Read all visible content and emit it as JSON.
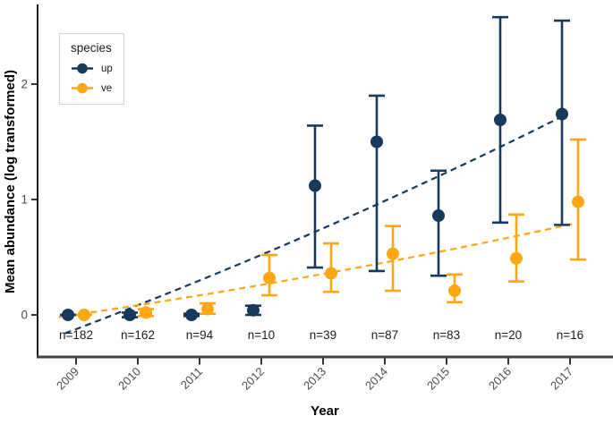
{
  "figure": {
    "xlabel": "Year",
    "ylabel": "Mean abundance (log transformed)"
  },
  "legend": {
    "title": "species"
  },
  "chart_data": {
    "type": "scatter",
    "title": "",
    "xlabel": "Year",
    "ylabel": "Mean abundance (log transformed)",
    "categories": [
      "2009",
      "2010",
      "2011",
      "2012",
      "2013",
      "2014",
      "2015",
      "2016",
      "2017"
    ],
    "n_labels": [
      "n=182",
      "n=162",
      "n=94",
      "n=10",
      "n=39",
      "n=87",
      "n=83",
      "n=20",
      "n=16"
    ],
    "yticks": [
      "0",
      "1",
      "2"
    ],
    "ylim": [
      -0.35,
      2.65
    ],
    "grid": false,
    "legend_position": "top-left",
    "legend_title": "species",
    "colors": {
      "up": "#17395C",
      "ve": "#FFA614",
      "axis": "#333333",
      "tick_text": "#4d4d4d",
      "n_text": "#1a1a1a"
    },
    "series": [
      {
        "name": "up",
        "color": "#17395C",
        "points": [
          {
            "x": "2009",
            "y": 0.0,
            "lo": 0.0,
            "hi": 0.0
          },
          {
            "x": "2010",
            "y": 0.0,
            "lo": -0.02,
            "hi": 0.02
          },
          {
            "x": "2011",
            "y": 0.0,
            "lo": -0.01,
            "hi": 0.01
          },
          {
            "x": "2012",
            "y": 0.04,
            "lo": 0.0,
            "hi": 0.08
          },
          {
            "x": "2013",
            "y": 1.12,
            "lo": 0.41,
            "hi": 1.64
          },
          {
            "x": "2014",
            "y": 1.5,
            "lo": 0.38,
            "hi": 1.9
          },
          {
            "x": "2015",
            "y": 0.86,
            "lo": 0.34,
            "hi": 1.25
          },
          {
            "x": "2016",
            "y": 1.69,
            "lo": 0.8,
            "hi": 2.58
          },
          {
            "x": "2017",
            "y": 1.74,
            "lo": 0.78,
            "hi": 2.55
          }
        ]
      },
      {
        "name": "ve",
        "color": "#FFA614",
        "points": [
          {
            "x": "2009",
            "y": 0.0,
            "lo": 0.0,
            "hi": 0.0
          },
          {
            "x": "2010",
            "y": 0.02,
            "lo": -0.01,
            "hi": 0.05
          },
          {
            "x": "2011",
            "y": 0.05,
            "lo": 0.01,
            "hi": 0.1
          },
          {
            "x": "2012",
            "y": 0.32,
            "lo": 0.17,
            "hi": 0.52
          },
          {
            "x": "2013",
            "y": 0.36,
            "lo": 0.2,
            "hi": 0.62
          },
          {
            "x": "2014",
            "y": 0.53,
            "lo": 0.21,
            "hi": 0.77
          },
          {
            "x": "2015",
            "y": 0.21,
            "lo": 0.11,
            "hi": 0.35
          },
          {
            "x": "2016",
            "y": 0.49,
            "lo": 0.29,
            "hi": 0.87
          },
          {
            "x": "2017",
            "y": 0.98,
            "lo": 0.48,
            "hi": 1.52
          }
        ]
      }
    ],
    "trends": [
      {
        "series": "up",
        "style": "dashed",
        "points_year_value": [
          [
            2008.82,
            -0.16
          ],
          [
            2013.0,
            0.75
          ],
          [
            2016.95,
            1.74
          ]
        ]
      },
      {
        "series": "ve",
        "style": "dashed",
        "points_year_value": [
          [
            2008.72,
            -0.02
          ],
          [
            2013.0,
            0.355
          ],
          [
            2017.05,
            0.79
          ]
        ]
      }
    ]
  }
}
